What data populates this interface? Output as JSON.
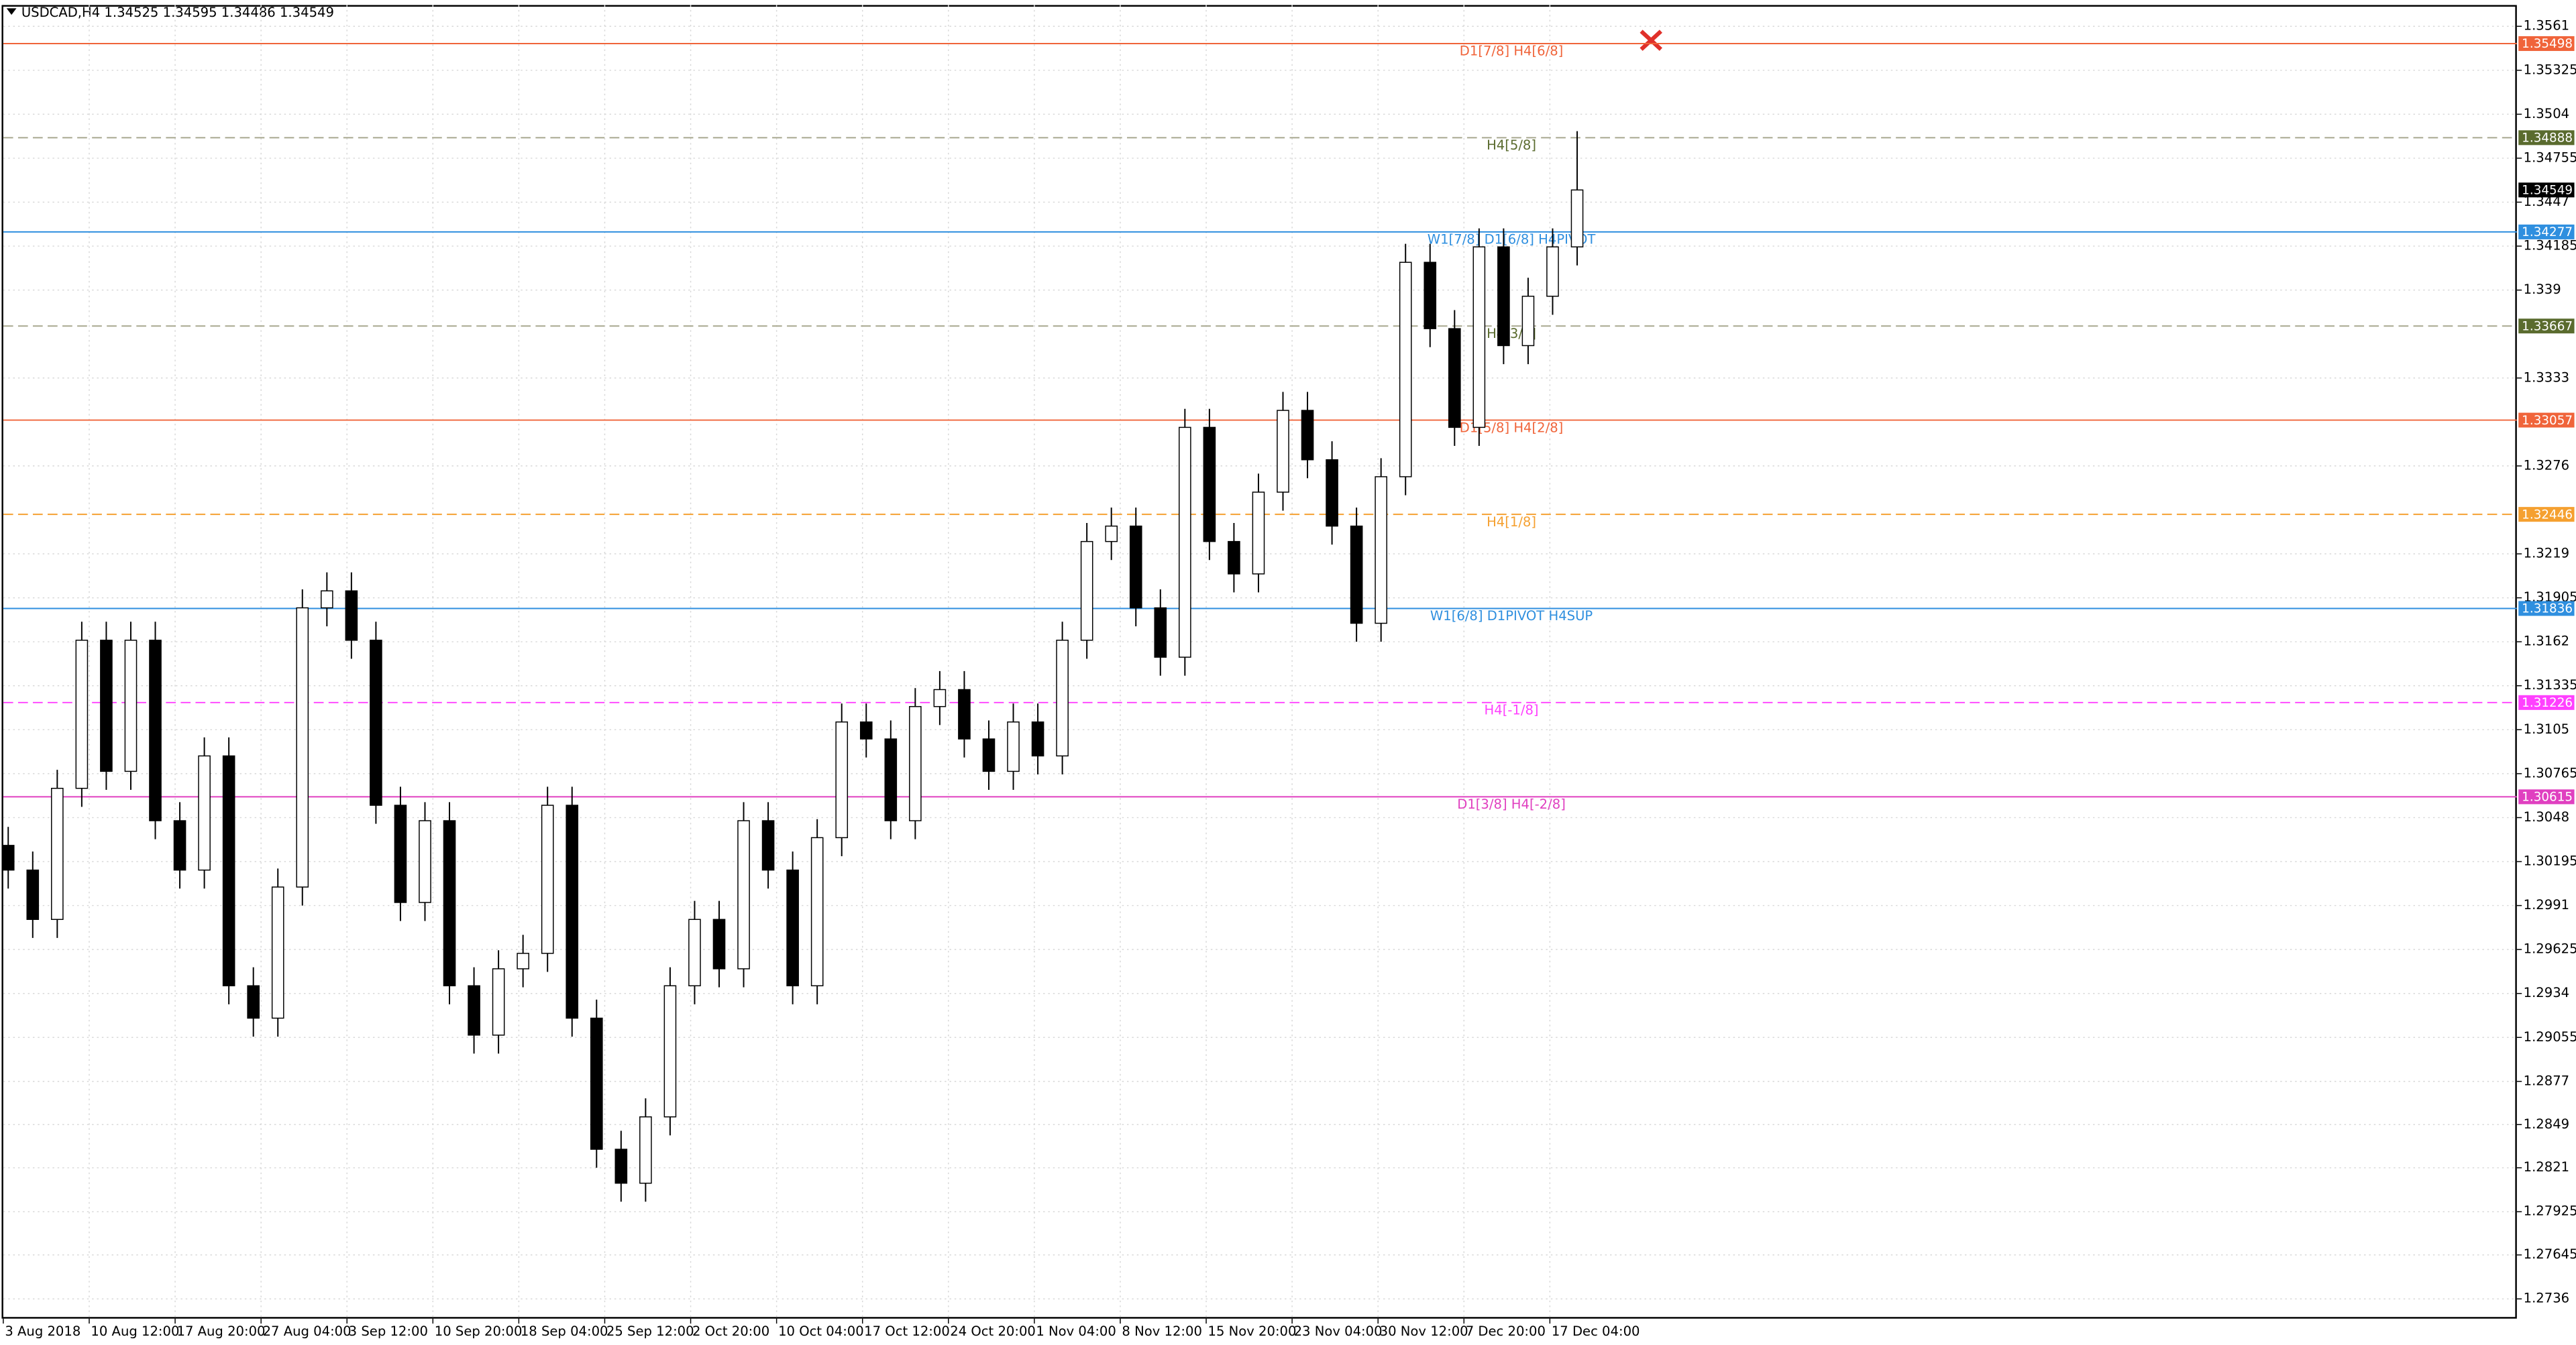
{
  "chart_data": {
    "type": "candlestick",
    "title": "USDCAD,H4  1.34525 1.34595 1.34486 1.34549",
    "x_labels": [
      "3 Aug 2018",
      "10 Aug 12:00",
      "17 Aug 20:00",
      "27 Aug 04:00",
      "3 Sep 12:00",
      "10 Sep 20:00",
      "18 Sep 04:00",
      "25 Sep 12:00",
      "2 Oct 20:00",
      "10 Oct 04:00",
      "17 Oct 12:00",
      "24 Oct 20:00",
      "1 Nov 04:00",
      "8 Nov 12:00",
      "15 Nov 20:00",
      "23 Nov 04:00",
      "30 Nov 12:00",
      "7 Dec 20:00",
      "17 Dec 04:00"
    ],
    "open": [
      1.303,
      1.3014,
      1.2982,
      1.3067,
      1.3163,
      1.3078,
      1.3163,
      1.3046,
      1.3014,
      1.3088,
      1.2939,
      1.2918,
      1.3003,
      1.3184,
      1.3195,
      1.3163,
      1.3056,
      1.2993,
      1.3046,
      1.2939,
      1.2907,
      1.295,
      1.296,
      1.3056,
      1.2918,
      1.2833,
      1.2811,
      1.2854,
      1.2939,
      1.2982,
      1.295,
      1.3046,
      1.3014,
      1.2939,
      1.3035,
      1.311,
      1.3099,
      1.3046,
      1.312,
      1.3131,
      1.3099,
      1.3078,
      1.311,
      1.3088,
      1.3163,
      1.3227,
      1.3237,
      1.3184,
      1.3152,
      1.3301,
      1.3227,
      1.3206,
      1.3259,
      1.3312,
      1.328,
      1.3237,
      1.3174,
      1.3269,
      1.3408,
      1.3365,
      1.3301,
      1.3418,
      1.3354,
      1.3386,
      1.3418
    ],
    "high": [
      1.3042,
      1.3026,
      1.3079,
      1.3175,
      1.3175,
      1.3175,
      1.3175,
      1.3058,
      1.31,
      1.31,
      1.2951,
      1.3015,
      1.3196,
      1.3207,
      1.3207,
      1.3175,
      1.3068,
      1.3058,
      1.3058,
      1.2951,
      1.2962,
      1.2972,
      1.3068,
      1.3068,
      1.293,
      1.2845,
      1.2866,
      1.2951,
      1.2994,
      1.2994,
      1.3058,
      1.3058,
      1.3026,
      1.3047,
      1.3122,
      1.3122,
      1.3111,
      1.3132,
      1.3143,
      1.3143,
      1.3111,
      1.3122,
      1.3122,
      1.3175,
      1.3239,
      1.3249,
      1.3249,
      1.3196,
      1.3313,
      1.3313,
      1.3239,
      1.3271,
      1.3324,
      1.3324,
      1.3292,
      1.3249,
      1.3281,
      1.342,
      1.342,
      1.3377,
      1.343,
      1.343,
      1.3398,
      1.343,
      1.3493
    ],
    "low": [
      1.3002,
      1.297,
      1.297,
      1.3055,
      1.3066,
      1.3066,
      1.3034,
      1.3002,
      1.3002,
      1.2927,
      1.2906,
      1.2906,
      1.2991,
      1.3172,
      1.3151,
      1.3044,
      1.2981,
      1.2981,
      1.2927,
      1.2895,
      1.2895,
      1.2938,
      1.2948,
      1.2906,
      1.2821,
      1.2799,
      1.2799,
      1.2842,
      1.2927,
      1.2938,
      1.2938,
      1.3002,
      1.2927,
      1.2927,
      1.3023,
      1.3087,
      1.3034,
      1.3034,
      1.3108,
      1.3087,
      1.3066,
      1.3066,
      1.3076,
      1.3076,
      1.3151,
      1.3215,
      1.3172,
      1.314,
      1.314,
      1.3215,
      1.3194,
      1.3194,
      1.3247,
      1.3268,
      1.3225,
      1.3162,
      1.3162,
      1.3257,
      1.3353,
      1.3289,
      1.3289,
      1.3342,
      1.3342,
      1.3374,
      1.3406
    ],
    "close": [
      1.3014,
      1.2982,
      1.3067,
      1.3163,
      1.3078,
      1.3163,
      1.3046,
      1.3014,
      1.3088,
      1.2939,
      1.2918,
      1.3003,
      1.3184,
      1.3195,
      1.3163,
      1.3056,
      1.2993,
      1.3046,
      1.2939,
      1.2907,
      1.295,
      1.296,
      1.3056,
      1.2918,
      1.2833,
      1.2811,
      1.2854,
      1.2939,
      1.2982,
      1.295,
      1.3046,
      1.3014,
      1.2939,
      1.3035,
      1.311,
      1.3099,
      1.3046,
      1.312,
      1.3131,
      1.3099,
      1.3078,
      1.311,
      1.3088,
      1.3163,
      1.3227,
      1.3237,
      1.3184,
      1.3152,
      1.3301,
      1.3227,
      1.3206,
      1.3259,
      1.3312,
      1.328,
      1.3237,
      1.3174,
      1.3269,
      1.3408,
      1.3365,
      1.3301,
      1.3418,
      1.3354,
      1.3386,
      1.3418,
      1.34549
    ],
    "ylim": [
      1.27232,
      1.35748
    ],
    "yticks": [
      1.3561,
      1.35325,
      1.3504,
      1.34755,
      1.3447,
      1.34185,
      1.339,
      1.3333,
      1.3276,
      1.3219,
      1.31905,
      1.3162,
      1.31335,
      1.3105,
      1.30765,
      1.3048,
      1.30195,
      1.2991,
      1.29625,
      1.2934,
      1.29055,
      1.2877,
      1.2849,
      1.2821,
      1.27925,
      1.27645,
      1.2736
    ],
    "grid": true,
    "levels": [
      {
        "label": "D1[7/8] H4[6/8]",
        "value": 1.35498,
        "color": "#f0643a",
        "dashed": false
      },
      {
        "label": "H4[5/8]",
        "value": 1.34888,
        "color": "#5a6b2e",
        "dashed": true
      },
      {
        "label": "W1[7/8] D1[6/8] H4PIVOT",
        "value": 1.34277,
        "color": "#2f8fdf",
        "dashed": false
      },
      {
        "label": "H4[3/8]",
        "value": 1.33667,
        "color": "#5a6b2e",
        "dashed": true
      },
      {
        "label": "D1[5/8] H4[2/8]",
        "value": 1.33057,
        "color": "#f0643a",
        "dashed": false
      },
      {
        "label": "H4[1/8]",
        "value": 1.32446,
        "color": "#f5a030",
        "dashed": true
      },
      {
        "label": "W1[6/8] D1PIVOT H4SUP",
        "value": 1.31836,
        "color": "#2f8fdf",
        "dashed": false
      },
      {
        "label": "H4[-1/8]",
        "value": 1.31226,
        "color": "#ff40ff",
        "dashed": true
      },
      {
        "label": "D1[3/8] H4[-2/8]",
        "value": 1.30615,
        "color": "#e040c0",
        "dashed": false
      }
    ],
    "last_price": 1.34549
  }
}
